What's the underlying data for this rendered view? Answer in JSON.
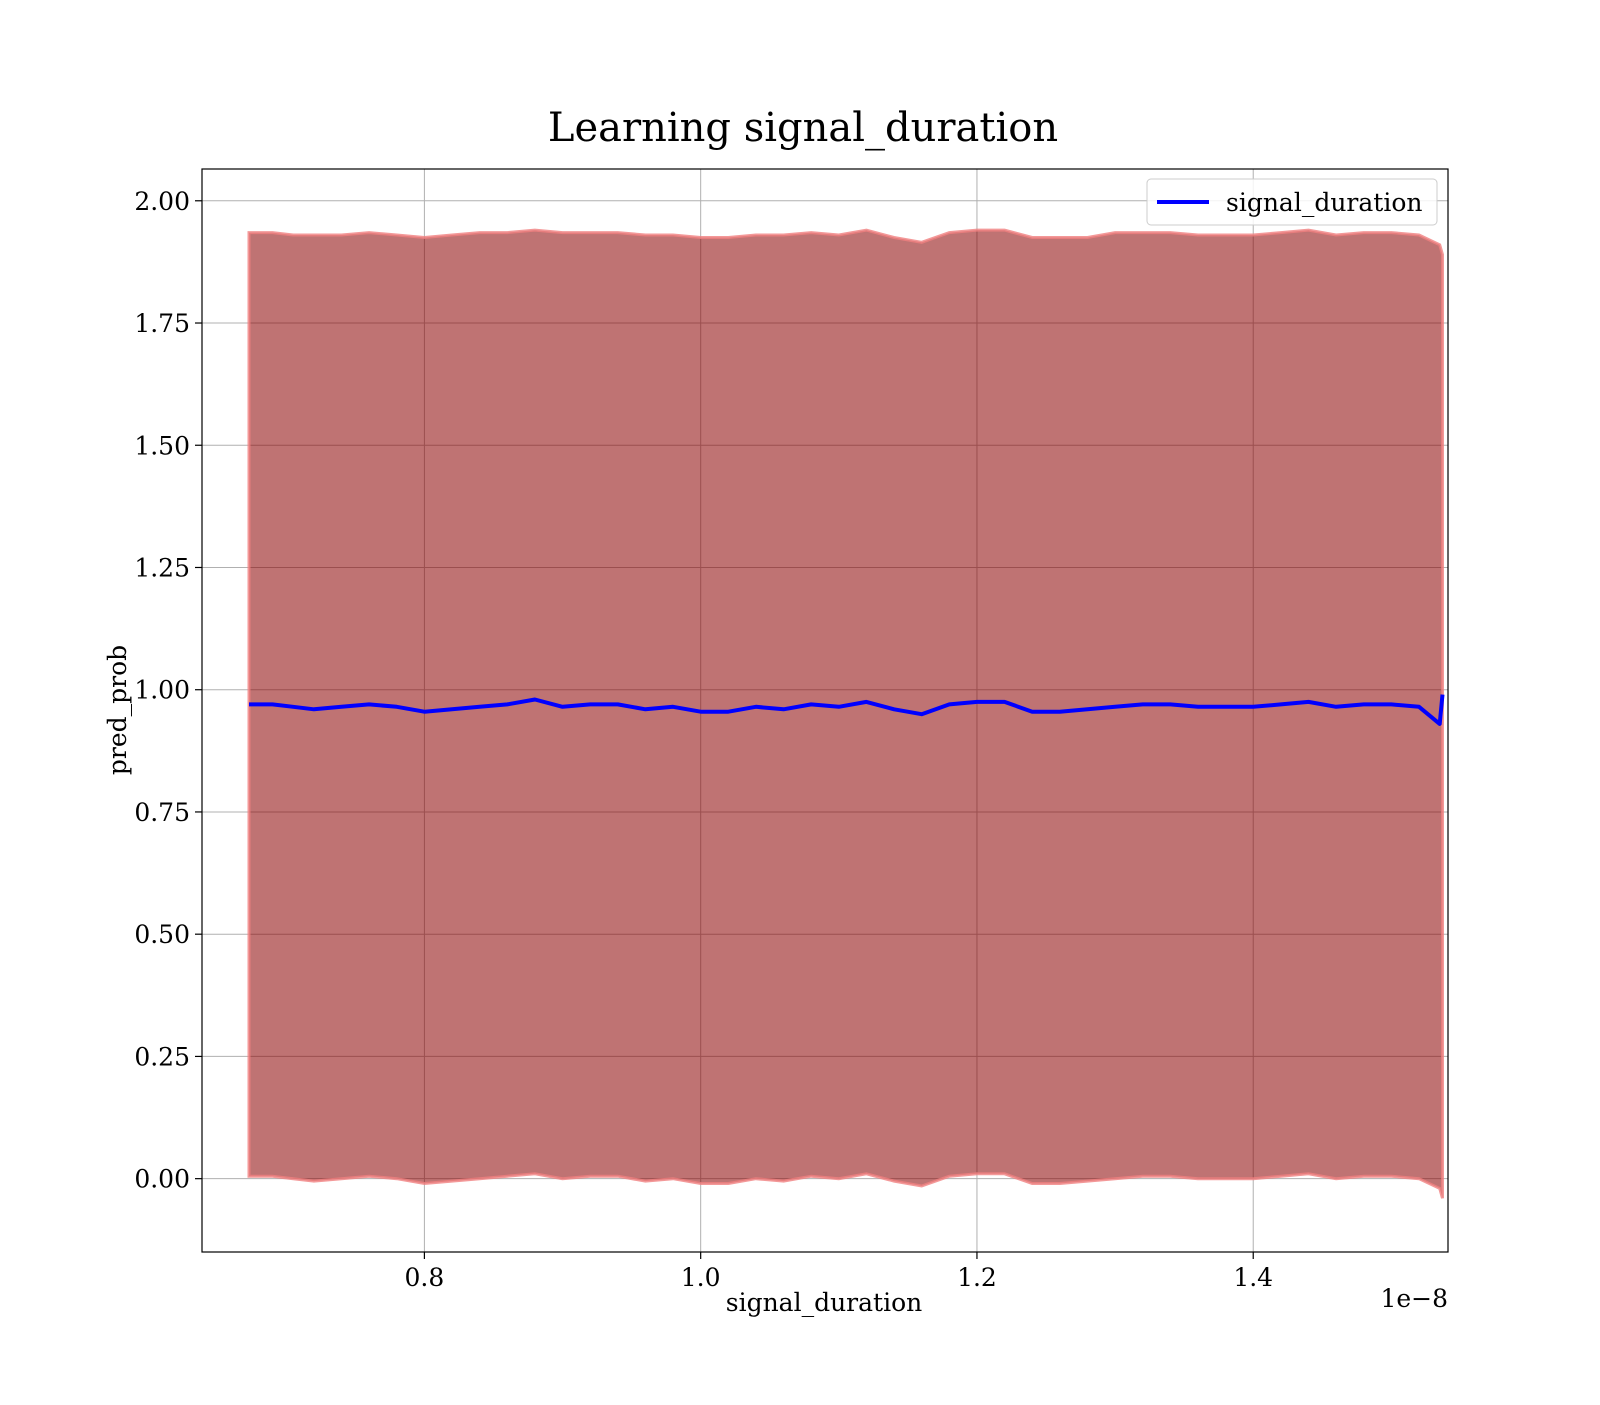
{
  "chart_data": {
    "type": "line",
    "title": "Learning signal_duration",
    "xlabel": "signal_duration",
    "ylabel": "pred_prob",
    "x_offset_text": "1e−8",
    "xlim": [
      6.39e-09,
      1.541e-08
    ],
    "ylim": [
      -0.15,
      2.065
    ],
    "grid": true,
    "legend_position": "upper right",
    "x_ticks": [
      {
        "value": 8e-09,
        "label": "0.8"
      },
      {
        "value": 1e-08,
        "label": "1.0"
      },
      {
        "value": 1.2e-08,
        "label": "1.2"
      },
      {
        "value": 1.4e-08,
        "label": "1.4"
      }
    ],
    "y_ticks": [
      {
        "value": 0.0,
        "label": "0.00"
      },
      {
        "value": 0.25,
        "label": "0.25"
      },
      {
        "value": 0.5,
        "label": "0.50"
      },
      {
        "value": 0.75,
        "label": "0.75"
      },
      {
        "value": 1.0,
        "label": "1.00"
      },
      {
        "value": 1.25,
        "label": "1.25"
      },
      {
        "value": 1.5,
        "label": "1.50"
      },
      {
        "value": 1.75,
        "label": "1.75"
      },
      {
        "value": 2.0,
        "label": "2.00"
      }
    ],
    "series": [
      {
        "name": "signal_duration",
        "color": "#0000ff",
        "x": [
          6.73e-09,
          6.9e-09,
          7.05e-09,
          7.2e-09,
          7.4e-09,
          7.6e-09,
          7.8e-09,
          8e-09,
          8.2e-09,
          8.4e-09,
          8.6e-09,
          8.8e-09,
          9e-09,
          9.2e-09,
          9.4e-09,
          9.6e-09,
          9.8e-09,
          1e-08,
          1.02e-08,
          1.04e-08,
          1.06e-08,
          1.08e-08,
          1.1e-08,
          1.12e-08,
          1.14e-08,
          1.16e-08,
          1.18e-08,
          1.2e-08,
          1.22e-08,
          1.24e-08,
          1.26e-08,
          1.28e-08,
          1.3e-08,
          1.32e-08,
          1.34e-08,
          1.36e-08,
          1.38e-08,
          1.4e-08,
          1.42e-08,
          1.44e-08,
          1.46e-08,
          1.48e-08,
          1.5e-08,
          1.52e-08,
          1.535e-08,
          1.537e-08
        ],
        "y": [
          0.97,
          0.97,
          0.965,
          0.96,
          0.965,
          0.97,
          0.965,
          0.955,
          0.96,
          0.965,
          0.97,
          0.98,
          0.965,
          0.97,
          0.97,
          0.96,
          0.965,
          0.955,
          0.955,
          0.965,
          0.96,
          0.97,
          0.965,
          0.975,
          0.96,
          0.95,
          0.97,
          0.975,
          0.975,
          0.955,
          0.955,
          0.96,
          0.965,
          0.97,
          0.97,
          0.965,
          0.965,
          0.965,
          0.97,
          0.975,
          0.965,
          0.97,
          0.97,
          0.965,
          0.93,
          0.99
        ]
      }
    ],
    "bands": [
      {
        "color": "#8b0000",
        "upper": [
          1.935,
          1.935,
          1.93,
          1.93,
          1.93,
          1.935,
          1.93,
          1.925,
          1.93,
          1.935,
          1.935,
          1.94,
          1.935,
          1.935,
          1.935,
          1.93,
          1.93,
          1.925,
          1.925,
          1.93,
          1.93,
          1.935,
          1.93,
          1.94,
          1.925,
          1.915,
          1.935,
          1.94,
          1.94,
          1.925,
          1.925,
          1.925,
          1.935,
          1.935,
          1.935,
          1.93,
          1.93,
          1.93,
          1.935,
          1.94,
          1.93,
          1.935,
          1.935,
          1.93,
          1.91,
          1.89
        ],
        "lower": [
          0.005,
          0.005,
          0.0,
          -0.005,
          0.0,
          0.005,
          0.0,
          -0.01,
          -0.005,
          0.0,
          0.005,
          0.01,
          0.0,
          0.005,
          0.005,
          -0.005,
          0.0,
          -0.01,
          -0.01,
          0.0,
          -0.005,
          0.005,
          0.0,
          0.01,
          -0.005,
          -0.015,
          0.005,
          0.01,
          0.01,
          -0.01,
          -0.01,
          -0.005,
          0.0,
          0.005,
          0.005,
          0.0,
          0.0,
          0.0,
          0.005,
          0.01,
          0.0,
          0.005,
          0.005,
          0.0,
          -0.02,
          -0.04
        ]
      }
    ]
  }
}
